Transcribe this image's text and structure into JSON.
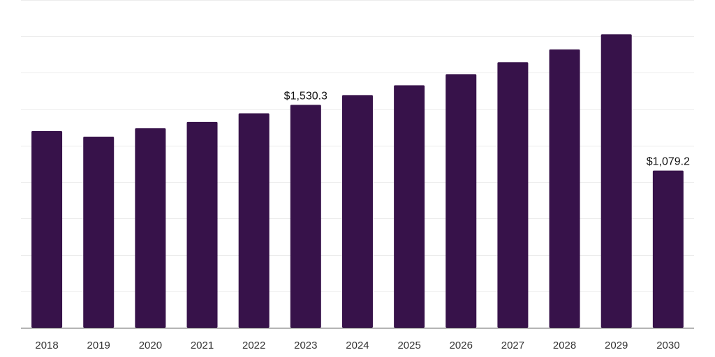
{
  "chart_data": {
    "type": "bar",
    "categories": [
      "2018",
      "2019",
      "2020",
      "2021",
      "2022",
      "2023",
      "2024",
      "2025",
      "2026",
      "2027",
      "2028",
      "2029",
      "2030"
    ],
    "values": [
      1350,
      1312,
      1369,
      1413,
      1472,
      1530.3,
      1597,
      1664,
      1741,
      1823,
      1911,
      2014,
      1079.2
    ],
    "data_labels": {
      "2023": "$1,530.3",
      "2030": "$1,079.2"
    },
    "ylim": [
      0,
      2250
    ],
    "grid": true,
    "gridline_values": [
      250,
      500,
      750,
      1000,
      1250,
      1500,
      1750,
      2000,
      2250
    ],
    "colors": {
      "bar": "#37124a",
      "axis": "#333333",
      "grid": "#ececec"
    }
  }
}
